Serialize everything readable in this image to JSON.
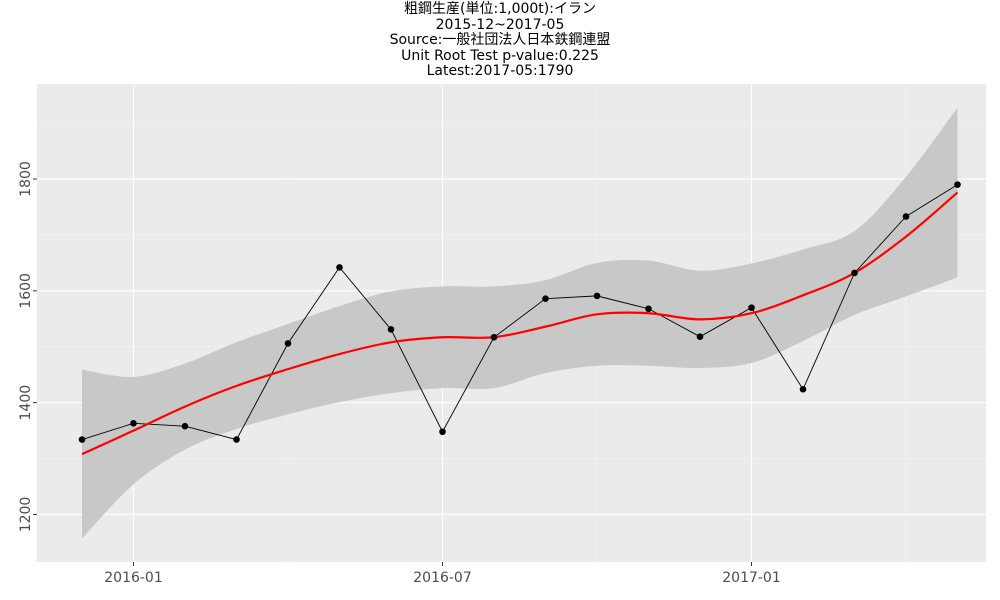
{
  "title_lines": [
    "粗鋼生産(単位:1,000t):イラン",
    "2015-12~2017-05",
    "Source:一般社団法人日本鉄鋼連盟",
    "Unit Root Test p-value:0.225",
    "Latest:2017-05:1790"
  ],
  "colors": {
    "panel": "#ebebeb",
    "grid_major": "#ffffff",
    "grid_minor": "#f5f5f5",
    "ribbon": "#c8c8c8",
    "smooth": "#ff0000",
    "line": "#000000",
    "point": "#000000"
  },
  "chart_data": {
    "type": "line",
    "x": [
      "2015-12",
      "2016-01",
      "2016-02",
      "2016-03",
      "2016-04",
      "2016-05",
      "2016-06",
      "2016-07",
      "2016-08",
      "2016-09",
      "2016-10",
      "2016-11",
      "2016-12",
      "2017-01",
      "2017-02",
      "2017-03",
      "2017-04",
      "2017-05"
    ],
    "series": [
      {
        "values": [
          1334,
          1363,
          1358,
          1334,
          1506,
          1642,
          1531,
          1348,
          1517,
          1586,
          1591,
          1568,
          1518,
          1570,
          1424,
          1632,
          1733,
          1790
        ]
      },
      {
        "type": "smooth",
        "values": [
          1308,
          1350,
          1393,
          1430,
          1460,
          1487,
          1508,
          1517,
          1517,
          1536,
          1558,
          1560,
          1549,
          1560,
          1592,
          1632,
          1697,
          1776
        ],
        "ci_lower": [
          1157,
          1254,
          1316,
          1353,
          1379,
          1401,
          1417,
          1426,
          1426,
          1453,
          1466,
          1466,
          1462,
          1471,
          1510,
          1557,
          1590,
          1624
        ],
        "ci_upper": [
          1459,
          1446,
          1470,
          1508,
          1541,
          1573,
          1599,
          1608,
          1608,
          1619,
          1650,
          1654,
          1636,
          1649,
          1674,
          1707,
          1804,
          1928
        ]
      }
    ],
    "x_tick_labels": [
      "2016-01",
      "2016-07",
      "2017-01"
    ],
    "y_tick_labels": [
      "1200",
      "1400",
      "1600",
      "1800"
    ],
    "ylim": [
      1115,
      1970
    ],
    "grid": true
  }
}
